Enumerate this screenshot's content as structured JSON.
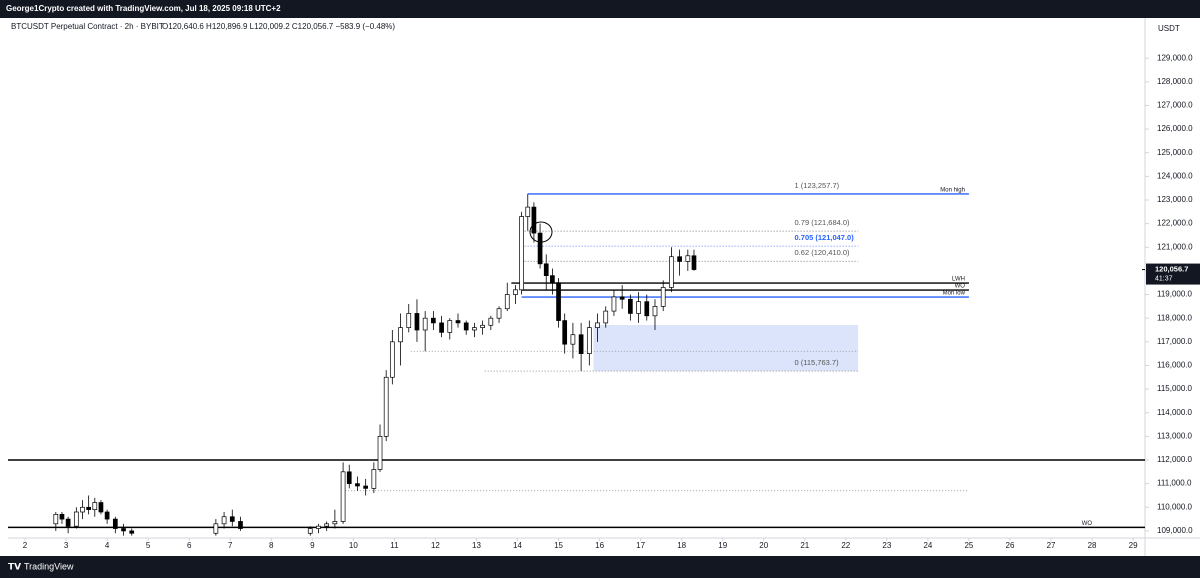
{
  "chart_data": {
    "type": "candlestick",
    "created_by": "George1Crypto created with TradingView.com, Jul 18, 2025 09:18 UTC+2",
    "title": "BTCUSDT Perpetual Contract · 2h · BYBIT",
    "ohlc_line": "O120,640.6 H120,896.9 L120,009.2 C120,056.7 −583.9 (−0.48%)",
    "currency": "USDT",
    "footer": "TradingView",
    "x": [
      2.75,
      2.9,
      3.05,
      3.25,
      3.4,
      3.55,
      3.7,
      3.85,
      4.0,
      4.2,
      4.4,
      4.6,
      6.65,
      6.85,
      7.05,
      7.25,
      8.95,
      9.15,
      9.35,
      9.55,
      9.75,
      9.9,
      10.1,
      10.3,
      10.5,
      10.65,
      10.8,
      10.95,
      11.15,
      11.35,
      11.55,
      11.75,
      11.95,
      12.15,
      12.35,
      12.55,
      12.75,
      12.95,
      13.15,
      13.35,
      13.55,
      13.75,
      13.95,
      14.1,
      14.25,
      14.4,
      14.55,
      14.7,
      14.85,
      15.0,
      15.15,
      15.35,
      15.55,
      15.75,
      15.95,
      16.15,
      16.35,
      16.55,
      16.75,
      16.95,
      17.15,
      17.35,
      17.55,
      17.75,
      17.95,
      18.15,
      18.3
    ],
    "open": [
      109300,
      109700,
      109500,
      109200,
      109800,
      110000,
      109900,
      110200,
      109800,
      109500,
      109100,
      109000,
      108900,
      109300,
      109600,
      109400,
      108900,
      109100,
      109200,
      109300,
      109400,
      111500,
      111000,
      110900,
      110800,
      111600,
      113000,
      115500,
      117000,
      117600,
      118200,
      117500,
      118000,
      117800,
      117400,
      117900,
      117800,
      117500,
      117600,
      117700,
      118000,
      118400,
      119000,
      119200,
      122300,
      122700,
      121600,
      120300,
      119800,
      119500,
      117900,
      116900,
      117300,
      116500,
      117600,
      117800,
      118300,
      118900,
      118800,
      118200,
      118700,
      118100,
      118500,
      119300,
      120600,
      120400,
      120640.6
    ],
    "high": [
      109800,
      109800,
      109600,
      110000,
      110300,
      110500,
      110400,
      110300,
      109900,
      109600,
      109300,
      109100,
      109500,
      109800,
      109900,
      109600,
      109200,
      109300,
      109400,
      109900,
      111900,
      111800,
      111300,
      111200,
      111900,
      113500,
      115800,
      117500,
      118200,
      118600,
      118800,
      118300,
      118300,
      118100,
      118000,
      118200,
      117900,
      117800,
      117900,
      118100,
      118500,
      119500,
      119400,
      122500,
      123257.7,
      122900,
      122000,
      120700,
      120100,
      119700,
      118200,
      117800,
      117800,
      117900,
      118200,
      118500,
      119200,
      119400,
      119000,
      119100,
      119000,
      118800,
      119600,
      121000,
      120900,
      120900,
      120896.9
    ],
    "low": [
      109000,
      109300,
      108900,
      109100,
      109500,
      109700,
      109600,
      109700,
      109300,
      108900,
      108800,
      108800,
      108800,
      109100,
      109200,
      109000,
      108800,
      108900,
      109000,
      109100,
      109300,
      110800,
      110700,
      110500,
      110600,
      111500,
      112800,
      115200,
      116000,
      117400,
      117000,
      116600,
      117500,
      117200,
      117100,
      117600,
      117300,
      117200,
      117300,
      117500,
      117800,
      118300,
      118600,
      119000,
      121700,
      121200,
      120100,
      119200,
      119000,
      117600,
      116500,
      116300,
      115763.7,
      116000,
      117000,
      117600,
      118100,
      118400,
      117900,
      117800,
      117900,
      117500,
      118300,
      119100,
      119800,
      120000,
      120009.2
    ],
    "close": [
      109700,
      109500,
      109200,
      109800,
      110000,
      109900,
      110200,
      109800,
      109500,
      109100,
      109000,
      108900,
      109300,
      109600,
      109400,
      109100,
      109100,
      109200,
      109300,
      109400,
      111500,
      111000,
      110900,
      110800,
      111600,
      113000,
      115500,
      117000,
      117600,
      118200,
      117500,
      118000,
      117800,
      117400,
      117900,
      117800,
      117500,
      117600,
      117700,
      118000,
      118400,
      119000,
      119200,
      122300,
      122700,
      121600,
      120300,
      119800,
      119500,
      117900,
      116900,
      117300,
      116500,
      117600,
      117800,
      118300,
      118900,
      118800,
      118200,
      118700,
      118100,
      118500,
      119300,
      120600,
      120400,
      120640.6,
      120056.7
    ],
    "up_color": "#ffffff",
    "down_color": "#000000",
    "xlim": [
      1.585,
      29.29
    ],
    "xticks": [
      2,
      3,
      4,
      5,
      6,
      7,
      8,
      9,
      10,
      11,
      12,
      13,
      14,
      15,
      16,
      17,
      18,
      19,
      20,
      21,
      22,
      23,
      24,
      25,
      26,
      27,
      28,
      29
    ],
    "ylim": [
      108700,
      130700
    ],
    "yticks": [
      {
        "value": 109000,
        "label": "109,000.0"
      },
      {
        "value": 110000,
        "label": "110,000.0"
      },
      {
        "value": 111000,
        "label": "111,000.0"
      },
      {
        "value": 112000,
        "label": "112,000.0"
      },
      {
        "value": 113000,
        "label": "113,000.0"
      },
      {
        "value": 114000,
        "label": "114,000.0"
      },
      {
        "value": 115000,
        "label": "115,000.0"
      },
      {
        "value": 116000,
        "label": "116,000.0"
      },
      {
        "value": 117000,
        "label": "117,000.0"
      },
      {
        "value": 118000,
        "label": "118,000.0"
      },
      {
        "value": 119000,
        "label": "119,000.0"
      },
      {
        "value": 120000,
        "label": "120,000.0"
      },
      {
        "value": 121000,
        "label": "121,000.0"
      },
      {
        "value": 122000,
        "label": "122,000.0"
      },
      {
        "value": 123000,
        "label": "123,000.0"
      },
      {
        "value": 124000,
        "label": "124,000.0"
      },
      {
        "value": 125000,
        "label": "125,000.0"
      },
      {
        "value": 126000,
        "label": "126,000.0"
      },
      {
        "value": 127000,
        "label": "127,000.0"
      },
      {
        "value": 128000,
        "label": "128,000.0"
      },
      {
        "value": 129000,
        "label": "129,000.0"
      }
    ],
    "last_price": {
      "value": 120056.7,
      "label": "120,056.7"
    },
    "countdown": "41:37",
    "levels": [
      {
        "label": "Mon high",
        "value": 123257.7,
        "color": "#2962ff"
      },
      {
        "label": "LWH",
        "value": 119486,
        "color": "#000000"
      },
      {
        "label": "WO",
        "value": 119190,
        "color": "#000000"
      },
      {
        "label": "Mon low",
        "value": 118894,
        "color": "#2962ff"
      },
      {
        "value": 112000,
        "color": "#000000"
      },
      {
        "label": "WO",
        "value": 109150,
        "color": "#000000"
      },
      {
        "value": 116600,
        "color": "#888888",
        "dotted": true
      },
      {
        "value": 110700,
        "color": "#888888",
        "dotted": true
      }
    ],
    "fib": [
      {
        "label": "1 (123,257.7)",
        "value": 123257.7,
        "color": "#555555"
      },
      {
        "label": "0.79 (121,684.0)",
        "value": 121684.0,
        "color": "#555555"
      },
      {
        "label": "0.705 (121,047.0)",
        "value": 121047.0,
        "color": "#2962ff"
      },
      {
        "label": "0.62 (120,410.0)",
        "value": 120410.0,
        "color": "#555555"
      },
      {
        "label": "0 (115,763.7)",
        "value": 115763.7,
        "color": "#555555"
      }
    ],
    "zone": {
      "low": 115763.7,
      "high": 117710,
      "color": "#dbe4fb"
    }
  }
}
